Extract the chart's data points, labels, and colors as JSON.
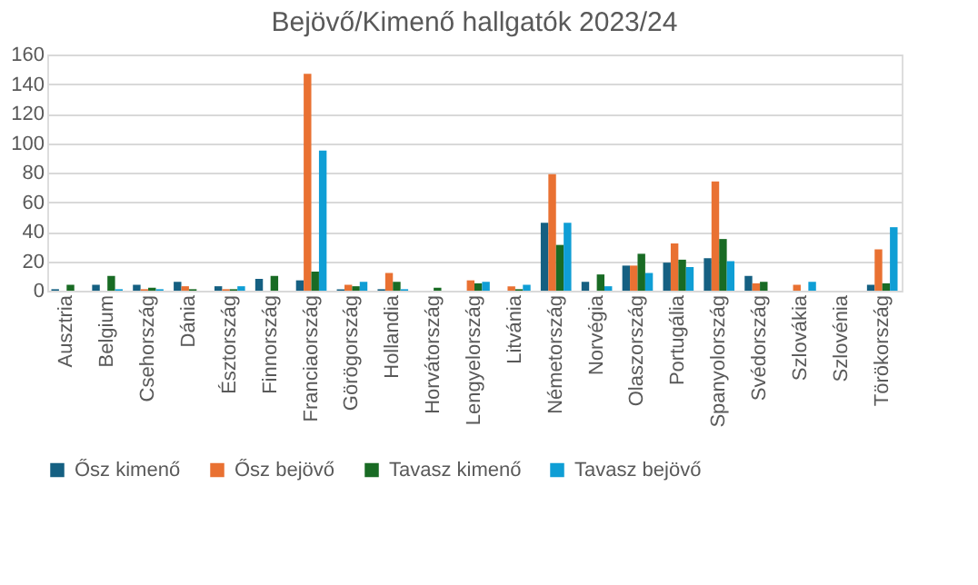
{
  "chart_data": {
    "type": "bar",
    "title": "Bejövő/Kimenő hallgatók 2023/24",
    "categories": [
      "Ausztria",
      "Belgium",
      "Csehország",
      "Dánia",
      "Észtország",
      "Finnország",
      "Franciaország",
      "Görögország",
      "Hollandia",
      "Horvátország",
      "Lengyelország",
      "Litvánia",
      "Németország",
      "Norvégia",
      "Olaszország",
      "Portugália",
      "Spanyolország",
      "Svédország",
      "Szlovákia",
      "Szlovénia",
      "Törökország"
    ],
    "series": [
      {
        "name": "Ősz kimenő",
        "color": "#156082",
        "values": [
          1,
          4,
          4,
          6,
          3,
          8,
          7,
          1,
          1,
          0,
          0,
          0,
          46,
          6,
          17,
          19,
          22,
          10,
          0,
          0,
          4
        ]
      },
      {
        "name": "Ősz bejövő",
        "color": "#e97132",
        "values": [
          0,
          0,
          1,
          3,
          1,
          0,
          147,
          4,
          12,
          0,
          7,
          3,
          79,
          0,
          17,
          32,
          74,
          5,
          4,
          0,
          28
        ]
      },
      {
        "name": "Tavasz kimenő",
        "color": "#196b24",
        "values": [
          4,
          10,
          2,
          1,
          1,
          10,
          13,
          3,
          6,
          2,
          5,
          1,
          31,
          11,
          25,
          21,
          35,
          6,
          0,
          0,
          5
        ]
      },
      {
        "name": "Tavasz bejövő",
        "color": "#0f9ed5",
        "values": [
          0,
          1,
          1,
          0,
          3,
          0,
          95,
          6,
          1,
          0,
          6,
          4,
          46,
          3,
          12,
          16,
          20,
          0,
          6,
          0,
          43
        ]
      }
    ],
    "ylim": [
      0,
      160
    ],
    "yticks": [
      0,
      20,
      40,
      60,
      80,
      100,
      120,
      140,
      160
    ],
    "grid": "y",
    "legend": "bottom"
  }
}
